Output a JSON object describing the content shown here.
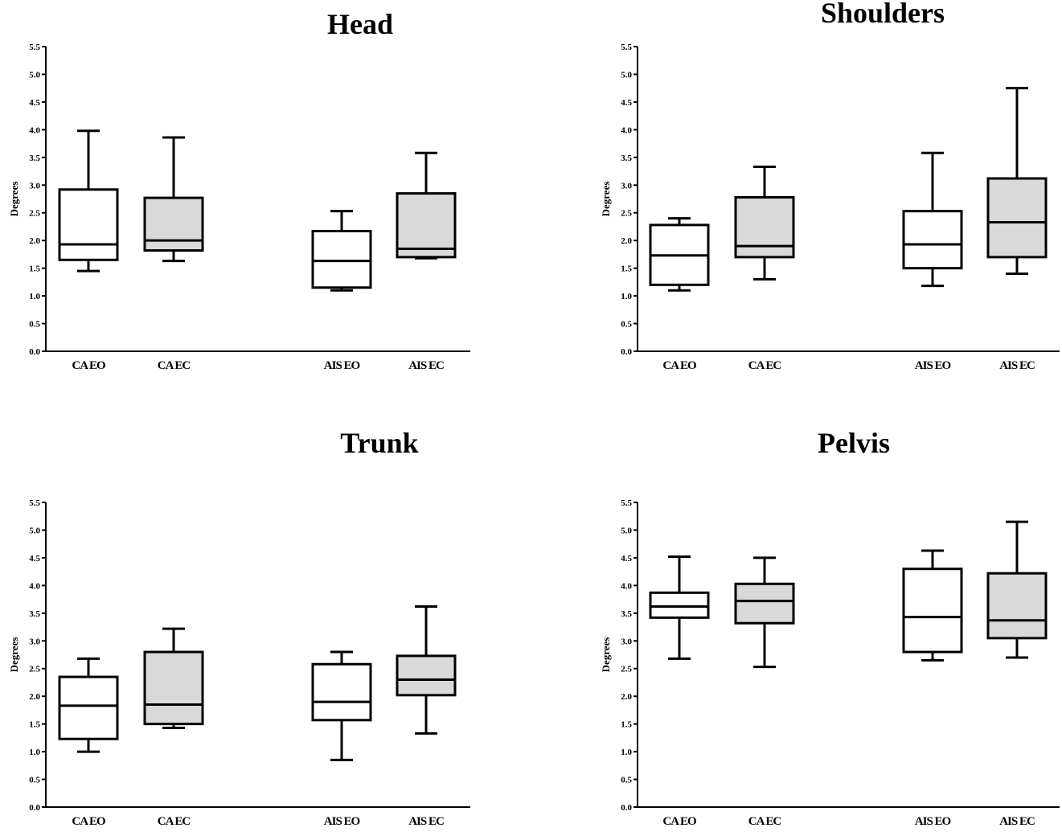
{
  "colors": {
    "axis": "#000000",
    "box_open": "#ffffff",
    "box_closed": "#d9d9d9"
  },
  "chart_data": [
    {
      "type": "box",
      "title": "Head",
      "ylabel": "Degrees",
      "ylim": [
        0,
        5.5
      ],
      "yticks": [
        "0.0",
        "0.5",
        "1.0",
        "1.5",
        "2.0",
        "2.5",
        "3.0",
        "3.5",
        "4.0",
        "4.5",
        "5.0",
        "5.5"
      ],
      "categories": [
        "CA EO",
        "CA EC",
        "AIS EO",
        "AIS EC"
      ],
      "boxes": [
        {
          "category": "CA EO",
          "min": 1.45,
          "q1": 1.65,
          "median": 1.93,
          "q3": 2.92,
          "max": 3.98,
          "fill": "open"
        },
        {
          "category": "CA EC",
          "min": 1.63,
          "q1": 1.82,
          "median": 2.0,
          "q3": 2.77,
          "max": 3.86,
          "fill": "closed"
        },
        {
          "category": "AIS EO",
          "min": 1.1,
          "q1": 1.15,
          "median": 1.63,
          "q3": 2.17,
          "max": 2.53,
          "fill": "open"
        },
        {
          "category": "AIS EC",
          "min": 1.68,
          "q1": 1.7,
          "median": 1.85,
          "q3": 2.85,
          "max": 3.58,
          "fill": "closed"
        }
      ]
    },
    {
      "type": "box",
      "title": "Shoulders",
      "ylabel": "Degrees",
      "ylim": [
        0,
        5.5
      ],
      "yticks": [
        "0.0",
        "0.5",
        "1.0",
        "1.5",
        "2.0",
        "2.5",
        "3.0",
        "3.5",
        "4.0",
        "4.5",
        "5.0",
        "5.5"
      ],
      "categories": [
        "CA EO",
        "CA EC",
        "AIS EO",
        "AIS EC"
      ],
      "boxes": [
        {
          "category": "CA EO",
          "min": 1.1,
          "q1": 1.2,
          "median": 1.73,
          "q3": 2.28,
          "max": 2.4,
          "fill": "open"
        },
        {
          "category": "CA EC",
          "min": 1.3,
          "q1": 1.7,
          "median": 1.9,
          "q3": 2.78,
          "max": 3.33,
          "fill": "closed"
        },
        {
          "category": "AIS EO",
          "min": 1.18,
          "q1": 1.5,
          "median": 1.93,
          "q3": 2.53,
          "max": 3.58,
          "fill": "open"
        },
        {
          "category": "AIS EC",
          "min": 1.4,
          "q1": 1.7,
          "median": 2.33,
          "q3": 3.12,
          "max": 4.75,
          "fill": "closed"
        }
      ]
    },
    {
      "type": "box",
      "title": "Trunk",
      "ylabel": "Degrees",
      "ylim": [
        0,
        5.5
      ],
      "yticks": [
        "0.0",
        "0.5",
        "1.0",
        "1.5",
        "2.0",
        "2.5",
        "3.0",
        "3.5",
        "4.0",
        "4.5",
        "5.0",
        "5.5"
      ],
      "categories": [
        "CA EO",
        "CA EC",
        "AIS EO",
        "AIS EC"
      ],
      "boxes": [
        {
          "category": "CA EO",
          "min": 1.0,
          "q1": 1.23,
          "median": 1.83,
          "q3": 2.35,
          "max": 2.68,
          "fill": "open"
        },
        {
          "category": "CA EC",
          "min": 1.43,
          "q1": 1.5,
          "median": 1.85,
          "q3": 2.8,
          "max": 3.22,
          "fill": "closed"
        },
        {
          "category": "AIS EO",
          "min": 0.85,
          "q1": 1.57,
          "median": 1.9,
          "q3": 2.58,
          "max": 2.8,
          "fill": "open"
        },
        {
          "category": "AIS EC",
          "min": 1.33,
          "q1": 2.02,
          "median": 2.3,
          "q3": 2.73,
          "max": 3.62,
          "fill": "closed"
        }
      ]
    },
    {
      "type": "box",
      "title": "Pelvis",
      "ylabel": "Degrees",
      "ylim": [
        0,
        5.5
      ],
      "yticks": [
        "0.0",
        "0.5",
        "1.0",
        "1.5",
        "2.0",
        "2.5",
        "3.0",
        "3.5",
        "4.0",
        "4.5",
        "5.0",
        "5.5"
      ],
      "categories": [
        "CA EO",
        "CA EC",
        "AIS EO",
        "AIS EC"
      ],
      "boxes": [
        {
          "category": "CA EO",
          "min": 2.68,
          "q1": 3.42,
          "median": 3.62,
          "q3": 3.87,
          "max": 4.52,
          "fill": "open"
        },
        {
          "category": "CA EC",
          "min": 2.53,
          "q1": 3.32,
          "median": 3.72,
          "q3": 4.03,
          "max": 4.5,
          "fill": "closed"
        },
        {
          "category": "AIS EO",
          "min": 2.65,
          "q1": 2.8,
          "median": 3.43,
          "q3": 4.3,
          "max": 4.63,
          "fill": "open"
        },
        {
          "category": "AIS EC",
          "min": 2.7,
          "q1": 3.05,
          "median": 3.37,
          "q3": 4.22,
          "max": 5.15,
          "fill": "closed"
        }
      ]
    }
  ]
}
